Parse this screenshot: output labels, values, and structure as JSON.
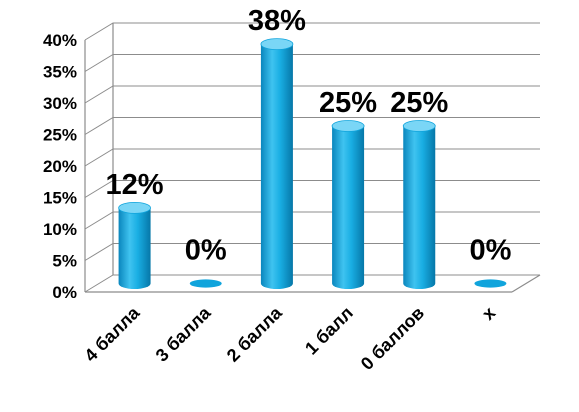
{
  "chart_data": {
    "type": "bar",
    "style": "3d-cylinder",
    "title": "",
    "xlabel": "",
    "ylabel": "",
    "categories": [
      "4 балла",
      "3 балла",
      "2 балла",
      "1 балл",
      "0 баллов",
      "х"
    ],
    "values": [
      12,
      0,
      38,
      25,
      25,
      0
    ],
    "data_labels": [
      "12%",
      "0%",
      "38%",
      "25%",
      "25%",
      "0%"
    ],
    "ylim": [
      0,
      40
    ],
    "y_ticks": [
      0,
      5,
      10,
      15,
      20,
      25,
      30,
      35,
      40
    ],
    "y_tick_labels": [
      "0%",
      "5%",
      "10%",
      "15%",
      "20%",
      "25%",
      "30%",
      "35%",
      "40%"
    ],
    "grid": true,
    "legend": "none",
    "colors": {
      "bar_light": "#3fc3f0",
      "bar_mid": "#10a4dc",
      "bar_dark": "#0677a8",
      "bar_top": "#7ad6f6",
      "grid": "#8c8c8c",
      "wall": "#ffffff"
    }
  }
}
